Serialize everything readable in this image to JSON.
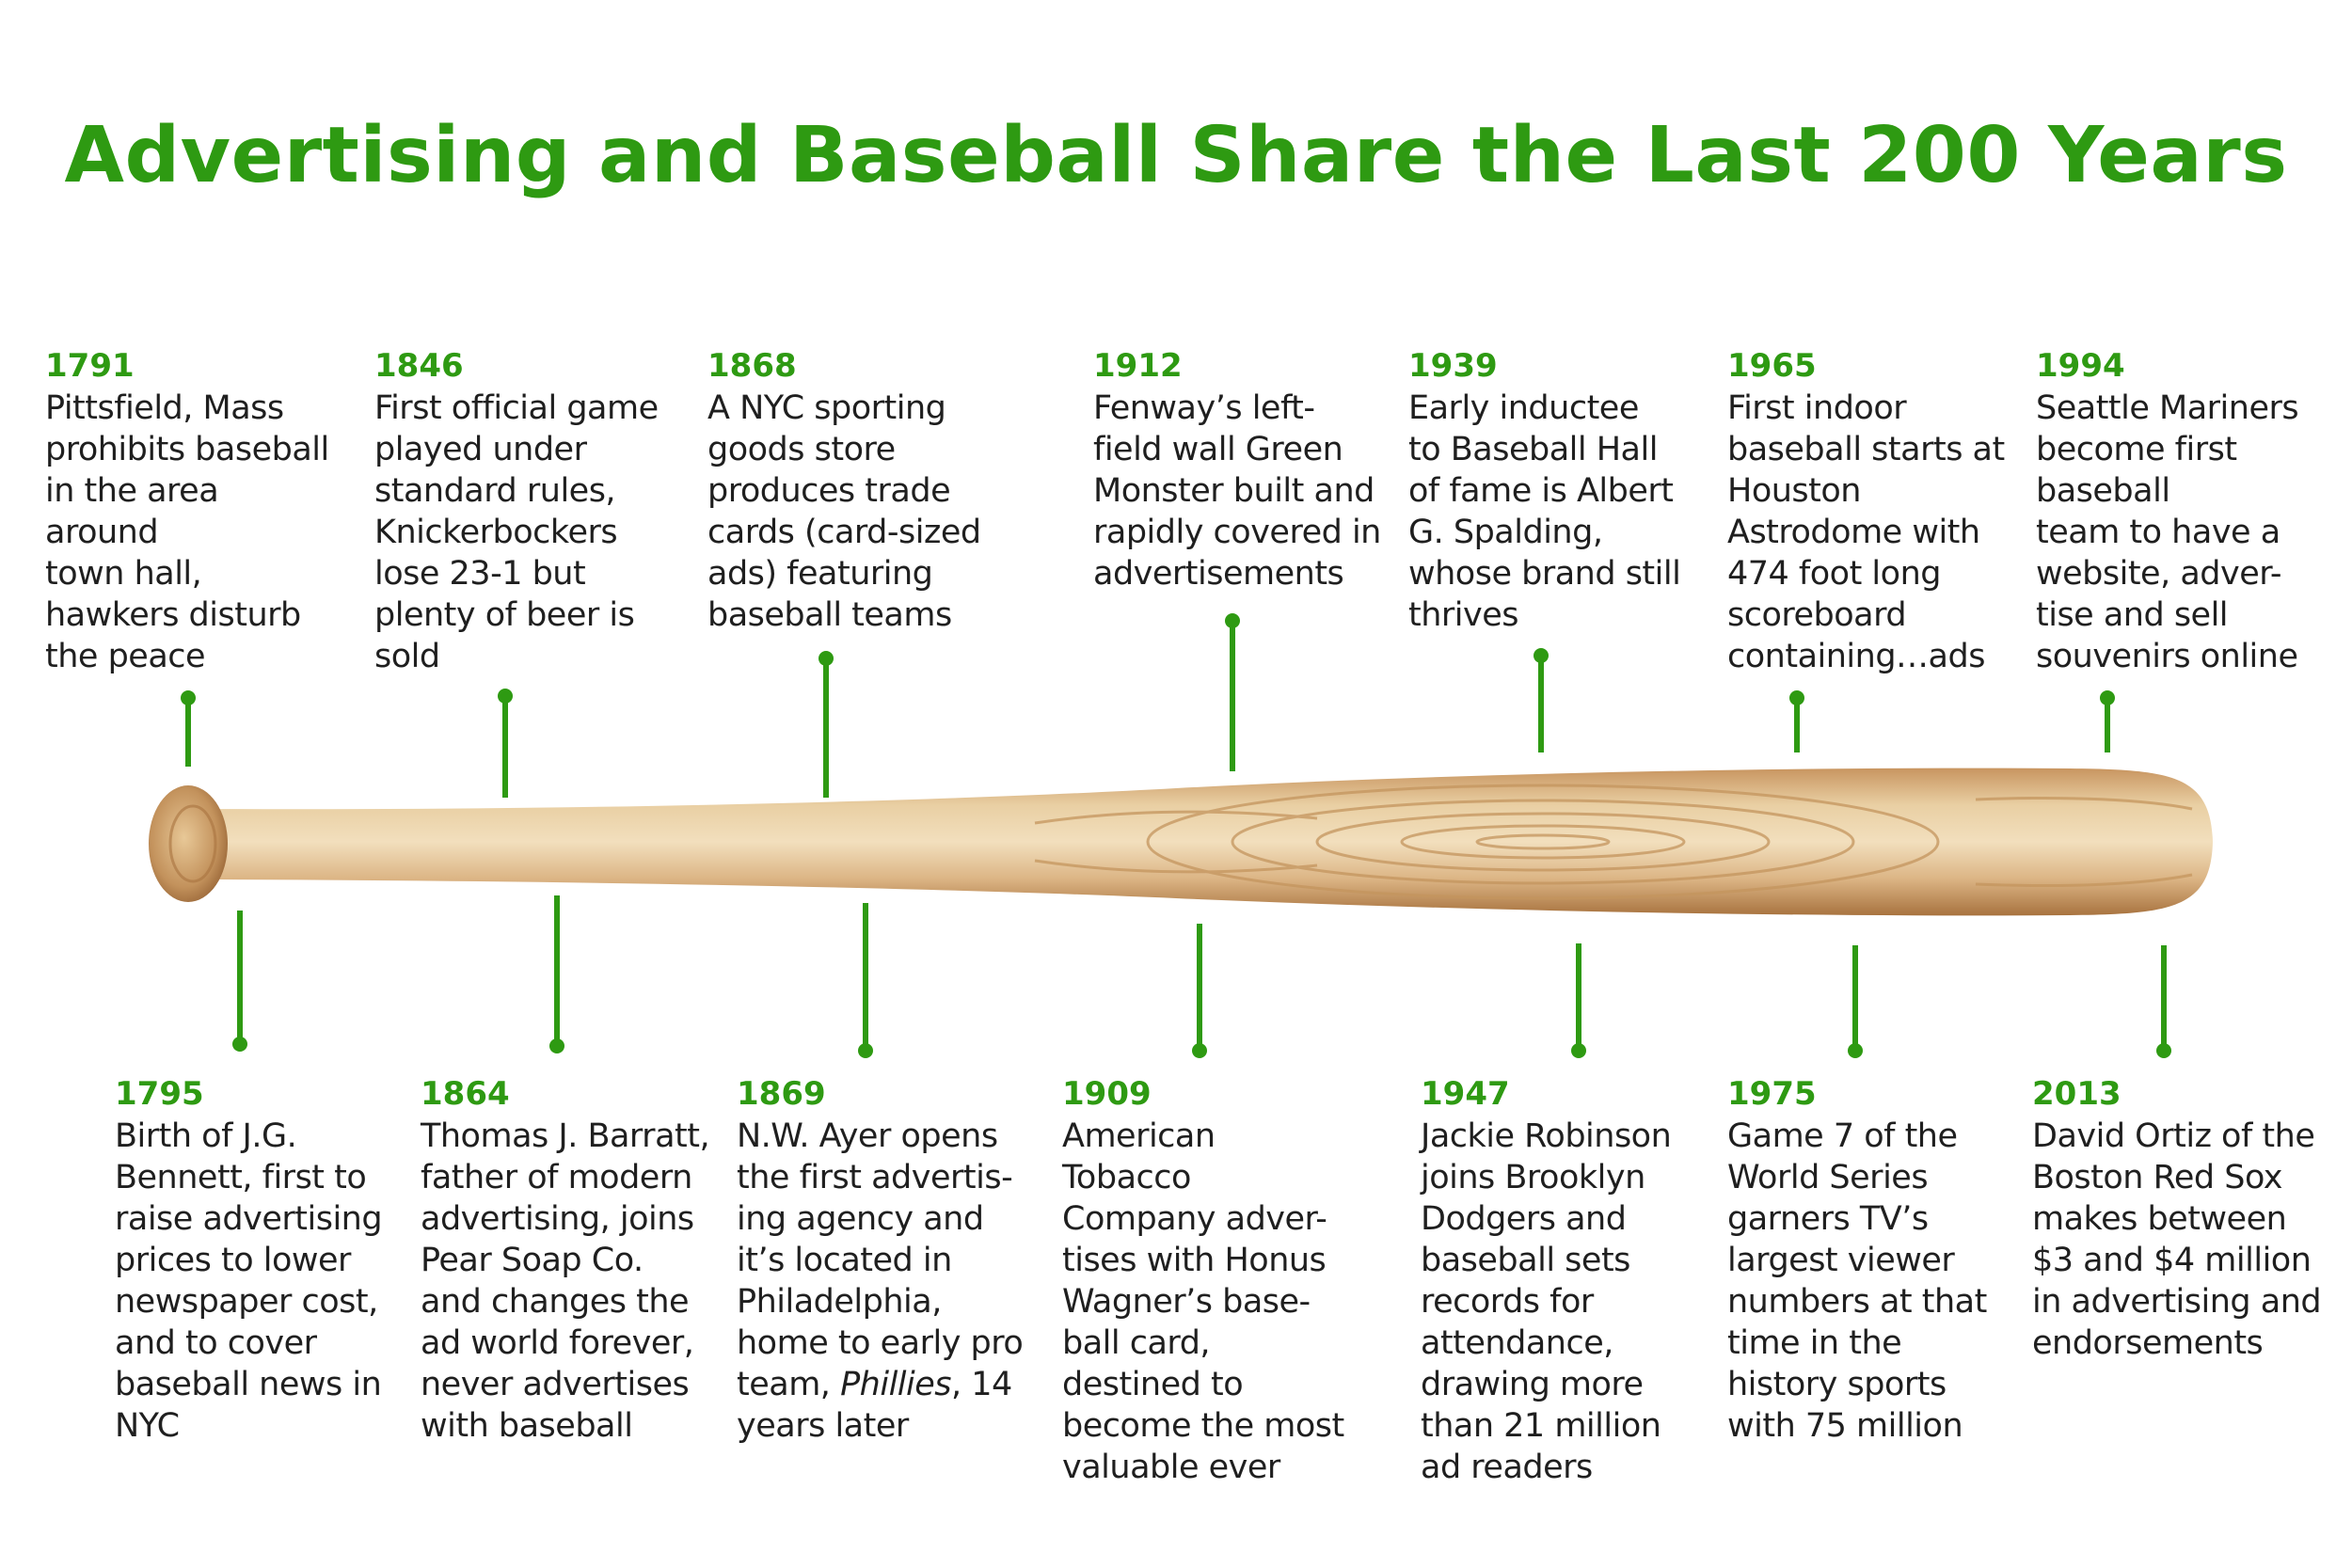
{
  "title": "Advertising and Baseball Share the Last 200 Years",
  "colors": {
    "accent": "#2e9a12",
    "text": "#1f1f1f",
    "bat_light": "#ecd6ae",
    "bat_dark": "#b07a43"
  },
  "events_top": [
    {
      "year": "1791",
      "desc": "Pittsfield, Mass\nprohibits baseball\nin the area\naround\ntown hall,\nhawkers disturb\nthe peace"
    },
    {
      "year": "1846",
      "desc": "First official game\nplayed under\nstandard rules,\nKnickerbockers\nlose 23-1 but\nplenty of beer is\nsold"
    },
    {
      "year": "1868",
      "desc": "A NYC sporting\ngoods store\nproduces trade\ncards (card-sized\nads) featuring\nbaseball teams"
    },
    {
      "year": "1912",
      "desc": "Fenway’s left-\nfield wall Green\nMonster built and\nrapidly covered in\nadvertisements"
    },
    {
      "year": "1939",
      "desc": "Early inductee\nto Baseball Hall\nof fame is Albert\nG. Spalding,\nwhose brand still\nthrives"
    },
    {
      "year": "1965",
      "desc": "First indoor\nbaseball starts at\nHouston\nAstrodome with\n474 foot long\nscoreboard\ncontaining…ads"
    },
    {
      "year": "1994",
      "desc": "Seattle Mariners\nbecome first\nbaseball\nteam to have a\nwebsite, adver-\ntise and sell\nsouvenirs online"
    }
  ],
  "events_bottom": [
    {
      "year": "1795",
      "desc": "Birth of J.G.\nBennett, first to\nraise advertising\nprices to lower\nnewspaper cost,\nand to cover\nbaseball news in\nNYC"
    },
    {
      "year": "1864",
      "desc": "Thomas J. Barratt,\nfather of modern\nadvertising, joins\nPear Soap Co.\nand changes the\nad world forever,\nnever advertises\nwith baseball"
    },
    {
      "year": "1869",
      "desc_before": "N.W. Ayer opens\nthe first advertis-\ning agency and\nit’s located in\nPhiladelphia,\nhome to early pro\nteam, ",
      "desc_italic": "Phillies",
      "desc_after": ", 14\nyears later"
    },
    {
      "year": "1909",
      "desc": "American\nTobacco\nCompany adver-\ntises with Honus\nWagner’s base-\nball card,\ndestined to\nbecome the most\nvaluable ever"
    },
    {
      "year": "1947",
      "desc": "Jackie Robinson\njoins Brooklyn\nDodgers and\nbaseball sets\nrecords for\nattendance,\ndrawing more\nthan 21 million\nad readers"
    },
    {
      "year": "1975",
      "desc": "Game 7 of the\nWorld Series\ngarners TV’s\nlargest viewer\nnumbers at that\ntime in the\nhistory sports\nwith 75 million"
    },
    {
      "year": "2013",
      "desc": "David Ortiz of the\nBoston Red Sox\nmakes between\n$3 and $4 million\nin advertising and\nendorsements"
    }
  ]
}
